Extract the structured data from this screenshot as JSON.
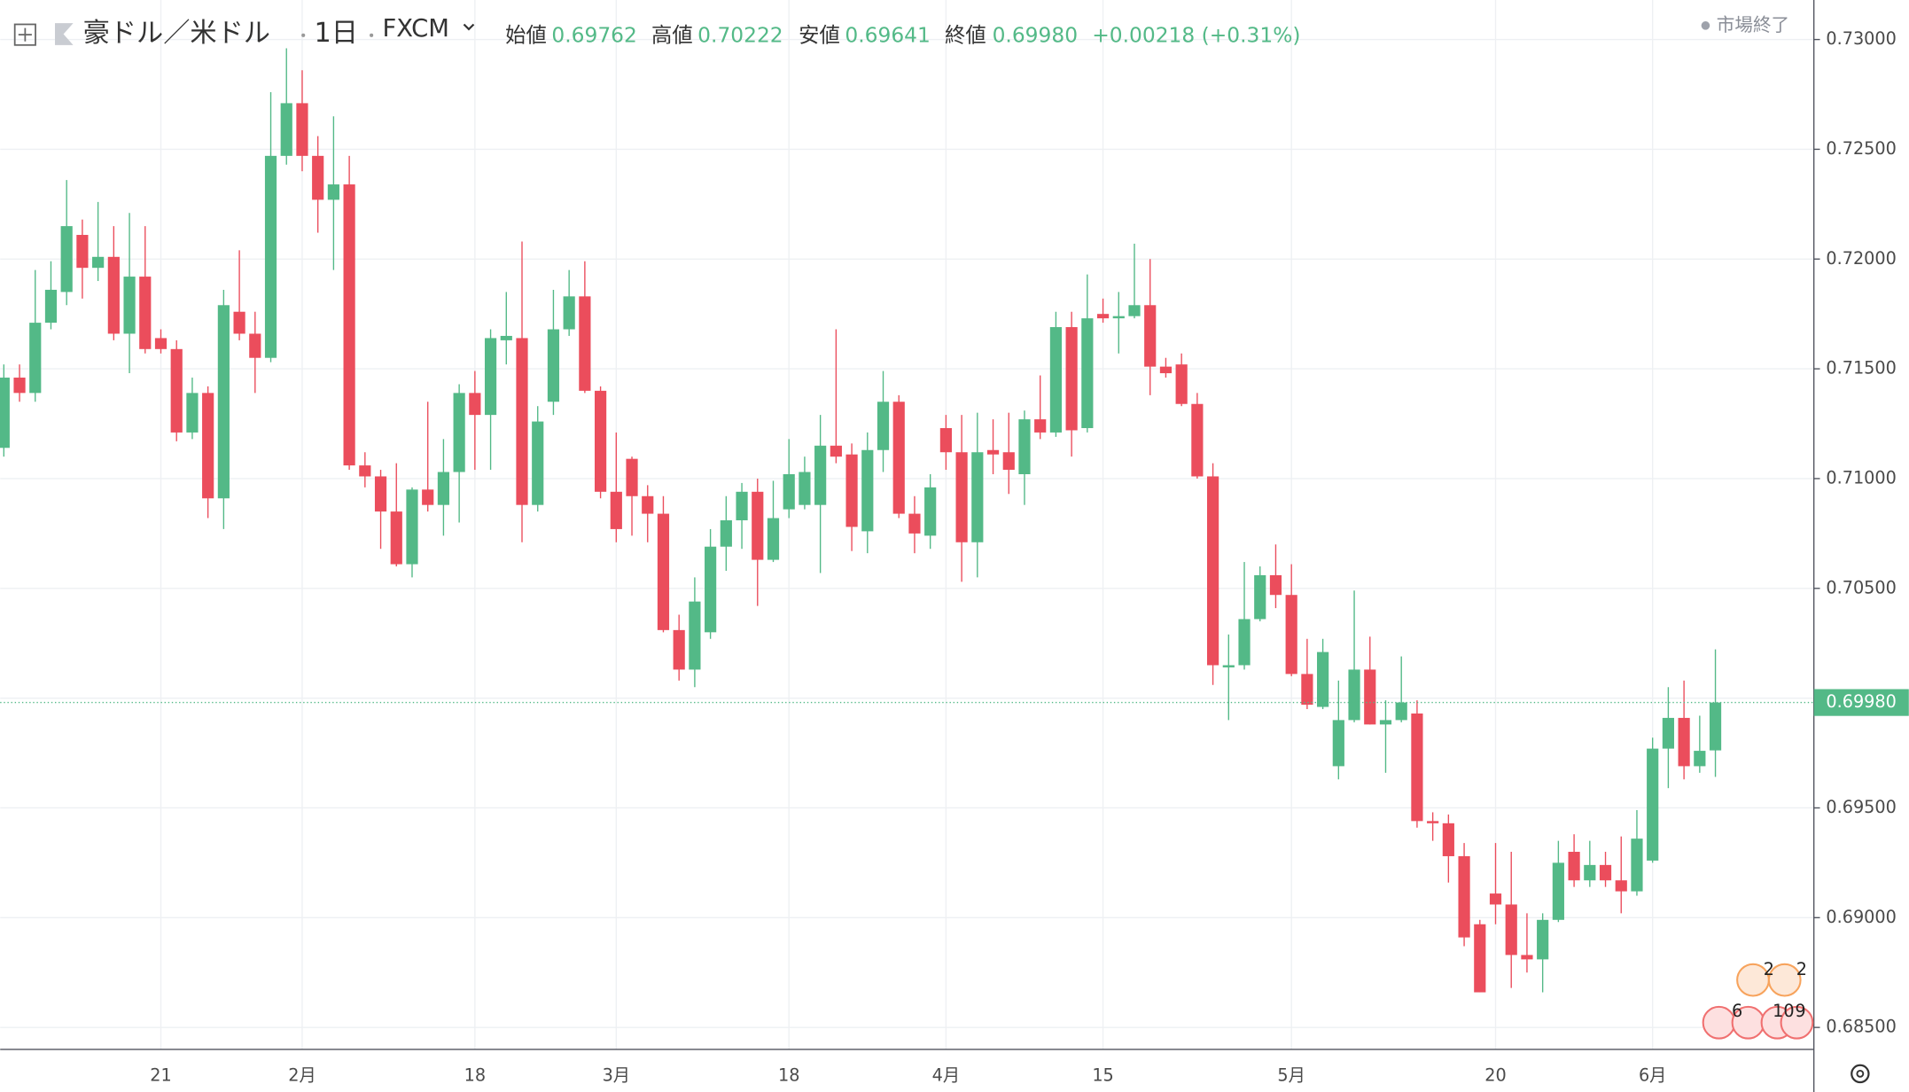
{
  "header": {
    "symbol": "豪ドル／米ドル",
    "interval": "1日",
    "source": "FXCM",
    "ohlc": [
      {
        "label": "始値",
        "value": "0.69762"
      },
      {
        "label": "高値",
        "value": "0.70222"
      },
      {
        "label": "安値",
        "value": "0.69641"
      },
      {
        "label": "終値",
        "value": "0.69980"
      }
    ],
    "change": "+0.00218 (+0.31%)",
    "status": "市場終了"
  },
  "events": {
    "au": [
      "2",
      "2"
    ],
    "us": [
      "6",
      "10",
      "9"
    ]
  },
  "chart_data": {
    "type": "candlestick",
    "categories": [
      null,
      null,
      null,
      null,
      null,
      null,
      null,
      null,
      null,
      null,
      "21",
      null,
      null,
      null,
      null,
      null,
      null,
      null,
      null,
      "2月",
      null,
      null,
      null,
      null,
      null,
      null,
      null,
      null,
      null,
      null,
      "18",
      null,
      null,
      null,
      null,
      null,
      null,
      null,
      null,
      "3月",
      null,
      null,
      null,
      null,
      null,
      null,
      null,
      null,
      null,
      null,
      "18",
      null,
      null,
      null,
      null,
      null,
      null,
      null,
      null,
      null,
      "4月",
      null,
      null,
      null,
      null,
      null,
      null,
      null,
      null,
      null,
      "15",
      null,
      null,
      null,
      null,
      null,
      null,
      null,
      null,
      null,
      null,
      null,
      "5月",
      null,
      null,
      null,
      null,
      null,
      null,
      null,
      null,
      null,
      null,
      null,
      null,
      "20",
      null,
      null,
      null,
      null,
      null,
      null,
      null,
      null,
      null,
      "6月",
      null,
      null,
      null,
      null
    ],
    "open": [
      0.7114,
      0.7146,
      0.7139,
      0.7171,
      0.7185,
      0.7211,
      0.7196,
      0.7201,
      0.7166,
      0.7192,
      0.7164,
      0.7159,
      0.7121,
      0.7139,
      0.7091,
      0.7176,
      0.7166,
      0.7155,
      0.7247,
      0.7271,
      0.7247,
      0.7227,
      0.7234,
      0.7106,
      0.7101,
      0.7085,
      0.7061,
      0.7095,
      0.7088,
      0.7103,
      0.7139,
      0.7129,
      0.7163,
      0.7164,
      0.7088,
      0.7135,
      0.7168,
      0.7183,
      0.714,
      0.7094,
      0.7109,
      0.7092,
      0.7084,
      0.7031,
      0.7013,
      0.703,
      0.7069,
      0.7081,
      0.7094,
      0.7063,
      0.7086,
      0.7088,
      0.7088,
      0.7115,
      0.7111,
      0.7076,
      0.7113,
      0.7135,
      0.7084,
      0.7074,
      0.7123,
      0.7112,
      0.7071,
      0.7113,
      0.7112,
      0.7102,
      0.7127,
      0.7121,
      0.7169,
      0.7123,
      0.7175,
      0.7173,
      0.7174,
      0.7179,
      0.7151,
      0.7152,
      0.7134,
      0.7101,
      0.7014,
      0.7015,
      0.7036,
      0.7056,
      0.7047,
      0.7011,
      0.6996,
      0.6969,
      0.699,
      0.7013,
      0.6988,
      0.699,
      0.6993,
      0.6944,
      0.6943,
      0.6928,
      0.6897,
      0.6911,
      0.6906,
      0.6883,
      0.6881,
      0.6899,
      0.693,
      0.6917,
      0.6924,
      0.6917,
      0.6912,
      0.6926,
      0.6977,
      0.6991,
      0.6969,
      0.69762
    ],
    "high": [
      0.7152,
      0.7152,
      0.7195,
      0.7199,
      0.7236,
      0.7218,
      0.7226,
      0.7215,
      0.7221,
      0.7215,
      0.7168,
      0.7163,
      0.7146,
      0.7142,
      0.7186,
      0.7204,
      0.7176,
      0.7276,
      0.7296,
      0.7286,
      0.7256,
      0.7265,
      0.7247,
      0.7112,
      0.7104,
      0.7107,
      0.7096,
      0.7135,
      0.7118,
      0.7143,
      0.7149,
      0.7168,
      0.7185,
      0.7208,
      0.7133,
      0.7186,
      0.7195,
      0.7199,
      0.7142,
      0.7121,
      0.711,
      0.7097,
      0.7092,
      0.7038,
      0.7055,
      0.7077,
      0.7092,
      0.7098,
      0.71,
      0.7099,
      0.7118,
      0.711,
      0.7129,
      0.7168,
      0.7116,
      0.7121,
      0.7149,
      0.7138,
      0.7092,
      0.7102,
      0.7129,
      0.7129,
      0.713,
      0.7127,
      0.713,
      0.7131,
      0.7147,
      0.7176,
      0.7176,
      0.7193,
      0.7182,
      0.7185,
      0.7207,
      0.72,
      0.7155,
      0.7157,
      0.7139,
      0.7107,
      0.7029,
      0.7062,
      0.706,
      0.707,
      0.7061,
      0.7027,
      0.7027,
      0.7008,
      0.7049,
      0.7028,
      0.6999,
      0.7019,
      0.6999,
      0.6948,
      0.6947,
      0.6934,
      0.6899,
      0.6934,
      0.693,
      0.6902,
      0.6902,
      0.6935,
      0.6938,
      0.6935,
      0.693,
      0.6937,
      0.6949,
      0.6982,
      0.7005,
      0.7008,
      0.6992,
      0.70222
    ],
    "low": [
      0.711,
      0.7135,
      0.7135,
      0.7168,
      0.7179,
      0.7182,
      0.719,
      0.7163,
      0.7148,
      0.7157,
      0.7157,
      0.7117,
      0.7118,
      0.7082,
      0.7077,
      0.7163,
      0.7139,
      0.7153,
      0.7243,
      0.724,
      0.7212,
      0.7195,
      0.7104,
      0.7096,
      0.7068,
      0.706,
      0.7055,
      0.7085,
      0.7074,
      0.708,
      0.7104,
      0.7104,
      0.7152,
      0.7071,
      0.7085,
      0.7129,
      0.7165,
      0.7139,
      0.7091,
      0.7071,
      0.7074,
      0.7071,
      0.703,
      0.7008,
      0.7005,
      0.7027,
      0.7058,
      0.7068,
      0.7042,
      0.7062,
      0.7082,
      0.7086,
      0.7057,
      0.7107,
      0.7067,
      0.7066,
      0.7103,
      0.7082,
      0.7066,
      0.7068,
      0.7104,
      0.7053,
      0.7055,
      0.7102,
      0.7093,
      0.7088,
      0.7118,
      0.7119,
      0.711,
      0.7121,
      0.7171,
      0.7157,
      0.7173,
      0.7138,
      0.7146,
      0.7133,
      0.71,
      0.7006,
      0.699,
      0.7013,
      0.7035,
      0.7041,
      0.701,
      0.6995,
      0.6995,
      0.6963,
      0.6989,
      0.6988,
      0.6966,
      0.6989,
      0.6941,
      0.6935,
      0.6916,
      0.6887,
      0.6866,
      0.6897,
      0.6868,
      0.6875,
      0.6866,
      0.6898,
      0.6914,
      0.6914,
      0.6914,
      0.6902,
      0.691,
      0.6925,
      0.6959,
      0.6963,
      0.6966,
      0.69641
    ],
    "close": [
      0.7146,
      0.7139,
      0.7171,
      0.7186,
      0.7215,
      0.7196,
      0.7201,
      0.7166,
      0.7192,
      0.7159,
      0.7159,
      0.7121,
      0.7139,
      0.7091,
      0.7179,
      0.7166,
      0.7155,
      0.7247,
      0.7271,
      0.7247,
      0.7227,
      0.7234,
      0.7106,
      0.7101,
      0.7085,
      0.7061,
      0.7095,
      0.7088,
      0.7103,
      0.7139,
      0.7129,
      0.7164,
      0.7165,
      0.7088,
      0.7126,
      0.7168,
      0.7183,
      0.714,
      0.7094,
      0.7077,
      0.7092,
      0.7084,
      0.7031,
      0.7013,
      0.7044,
      0.7069,
      0.7081,
      0.7094,
      0.7063,
      0.7082,
      0.7102,
      0.7103,
      0.7115,
      0.711,
      0.7078,
      0.7113,
      0.7135,
      0.7084,
      0.7075,
      0.7096,
      0.7112,
      0.7071,
      0.7112,
      0.7111,
      0.7104,
      0.7127,
      0.7121,
      0.7169,
      0.7122,
      0.7173,
      0.7173,
      0.7174,
      0.7179,
      0.7151,
      0.7148,
      0.7134,
      0.7101,
      0.7015,
      0.7015,
      0.7036,
      0.7056,
      0.7047,
      0.7011,
      0.6997,
      0.7021,
      0.699,
      0.7013,
      0.6988,
      0.699,
      0.6998,
      0.6944,
      0.6943,
      0.6928,
      0.6891,
      0.6866,
      0.6906,
      0.6883,
      0.6881,
      0.6899,
      0.6925,
      0.6917,
      0.6924,
      0.6917,
      0.6912,
      0.6936,
      0.6977,
      0.6991,
      0.6969,
      0.6976,
      0.6998
    ],
    "up_color": "#53b987",
    "down_color": "#eb4d5c",
    "ylim": [
      0.684,
      0.7318
    ],
    "yticks": [
      {
        "value": 0.685,
        "label": "0.68500"
      },
      {
        "value": 0.69,
        "label": "0.69000"
      },
      {
        "value": 0.695,
        "label": "0.69500"
      },
      {
        "value": 0.7,
        "label": "0.70000"
      },
      {
        "value": 0.705,
        "label": "0.70500"
      },
      {
        "value": 0.71,
        "label": "0.71000"
      },
      {
        "value": 0.715,
        "label": "0.71500"
      },
      {
        "value": 0.72,
        "label": "0.72000"
      },
      {
        "value": 0.725,
        "label": "0.72500"
      },
      {
        "value": 0.73,
        "label": "0.73000"
      }
    ],
    "grid": true,
    "last_price_label": "0.69980"
  }
}
